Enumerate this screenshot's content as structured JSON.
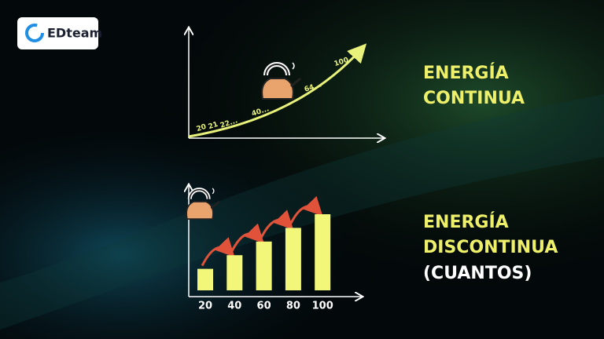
{
  "logo": {
    "text": "EDteam"
  },
  "continuous": {
    "curve_labels": [
      "20",
      "21",
      "22...",
      "40...",
      "64...",
      "100"
    ],
    "heading": [
      "ENERGÍA",
      "CONTINUA"
    ]
  },
  "discrete": {
    "bars": [
      20,
      40,
      60,
      80,
      100
    ],
    "heading": [
      "ENERGÍA",
      "DISCONTINUA",
      "(CUANTOS)"
    ]
  }
}
